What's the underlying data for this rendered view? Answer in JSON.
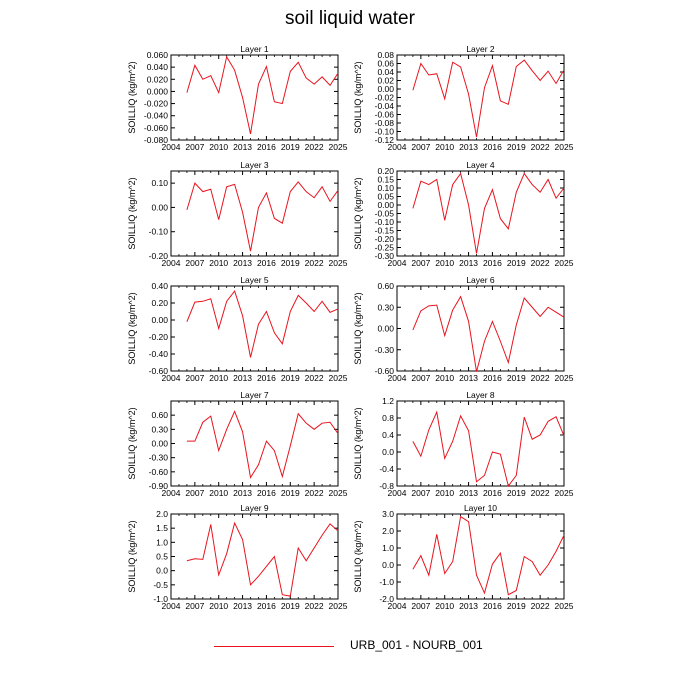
{
  "title": "soil liquid water",
  "legend": {
    "label": "URB_001 - NOURB_001",
    "color": "#e8141e"
  },
  "chart_data": [
    {
      "type": "line",
      "title": "Layer 1",
      "ylabel": "SOILLIQ  (kg/m^2)",
      "x": [
        2006,
        2007,
        2008,
        2009,
        2010,
        2011,
        2012,
        2013,
        2014,
        2015,
        2016,
        2017,
        2018,
        2019,
        2020,
        2021,
        2022,
        2023,
        2024,
        2025
      ],
      "y": [
        -0.002,
        0.043,
        0.02,
        0.026,
        -0.002,
        0.057,
        0.035,
        -0.01,
        -0.07,
        0.012,
        0.041,
        -0.017,
        -0.02,
        0.033,
        0.048,
        0.022,
        0.012,
        0.024,
        0.01,
        0.03
      ],
      "xlim": [
        2004,
        2025
      ],
      "ylim": [
        -0.08,
        0.06
      ],
      "xticks": [
        2004,
        2007,
        2010,
        2013,
        2016,
        2019,
        2022,
        2025
      ],
      "yticks": [
        -0.08,
        -0.06,
        -0.04,
        -0.02,
        0.0,
        0.02,
        0.04,
        0.06
      ],
      "yticklabels": [
        "-0.080",
        "-0.060",
        "-0.040",
        "-0.020",
        "0.000",
        "0.020",
        "0.040",
        "0.060"
      ]
    },
    {
      "type": "line",
      "title": "Layer 2",
      "ylabel": "SOILLIQ  (kg/m^2)",
      "x": [
        2006,
        2007,
        2008,
        2009,
        2010,
        2011,
        2012,
        2013,
        2014,
        2015,
        2016,
        2017,
        2018,
        2019,
        2020,
        2021,
        2022,
        2023,
        2024,
        2025
      ],
      "y": [
        -0.003,
        0.06,
        0.033,
        0.036,
        -0.023,
        0.063,
        0.052,
        -0.012,
        -0.113,
        0.003,
        0.055,
        -0.028,
        -0.036,
        0.053,
        0.068,
        0.043,
        0.02,
        0.042,
        0.013,
        0.045
      ],
      "xlim": [
        2004,
        2025
      ],
      "ylim": [
        -0.12,
        0.08
      ],
      "xticks": [
        2004,
        2007,
        2010,
        2013,
        2016,
        2019,
        2022,
        2025
      ],
      "yticks": [
        -0.12,
        -0.1,
        -0.08,
        -0.06,
        -0.04,
        -0.02,
        0.0,
        0.02,
        0.04,
        0.06,
        0.08
      ],
      "yticklabels": [
        "-0.12",
        "-0.10",
        "-0.08",
        "-0.06",
        "-0.04",
        "-0.02",
        "0.00",
        "0.02",
        "0.04",
        "0.06",
        "0.08"
      ]
    },
    {
      "type": "line",
      "title": "Layer 3",
      "ylabel": "SOILLIQ  (kg/m^2)",
      "x": [
        2006,
        2007,
        2008,
        2009,
        2010,
        2011,
        2012,
        2013,
        2014,
        2015,
        2016,
        2017,
        2018,
        2019,
        2020,
        2021,
        2022,
        2023,
        2024,
        2025
      ],
      "y": [
        -0.01,
        0.1,
        0.065,
        0.075,
        -0.05,
        0.085,
        0.095,
        -0.02,
        -0.18,
        0.0,
        0.06,
        -0.045,
        -0.065,
        0.065,
        0.105,
        0.065,
        0.04,
        0.085,
        0.025,
        0.07
      ],
      "xlim": [
        2004,
        2025
      ],
      "ylim": [
        -0.2,
        0.15
      ],
      "xticks": [
        2004,
        2007,
        2010,
        2013,
        2016,
        2019,
        2022,
        2025
      ],
      "yticks": [
        -0.2,
        -0.1,
        0.0,
        0.1
      ],
      "yticklabels": [
        "-0.20",
        "-0.10",
        "0.00",
        "0.10"
      ]
    },
    {
      "type": "line",
      "title": "Layer 4",
      "ylabel": "SOILLIQ  (kg/m^2)",
      "x": [
        2006,
        2007,
        2008,
        2009,
        2010,
        2011,
        2012,
        2013,
        2014,
        2015,
        2016,
        2017,
        2018,
        2019,
        2020,
        2021,
        2022,
        2023,
        2024,
        2025
      ],
      "y": [
        -0.02,
        0.14,
        0.12,
        0.15,
        -0.09,
        0.12,
        0.185,
        0.0,
        -0.285,
        -0.02,
        0.09,
        -0.08,
        -0.14,
        0.075,
        0.185,
        0.12,
        0.075,
        0.15,
        0.04,
        0.1
      ],
      "xlim": [
        2004,
        2025
      ],
      "ylim": [
        -0.3,
        0.2
      ],
      "xticks": [
        2004,
        2007,
        2010,
        2013,
        2016,
        2019,
        2022,
        2025
      ],
      "yticks": [
        -0.3,
        -0.25,
        -0.2,
        -0.15,
        -0.1,
        -0.05,
        0.0,
        0.05,
        0.1,
        0.15,
        0.2
      ],
      "yticklabels": [
        "-0.30",
        "-0.25",
        "-0.20",
        "-0.15",
        "-0.10",
        "-0.05",
        "0.00",
        "0.05",
        "0.10",
        "0.15",
        "0.20"
      ]
    },
    {
      "type": "line",
      "title": "Layer 5",
      "ylabel": "SOILLIQ  (kg/m^2)",
      "x": [
        2006,
        2007,
        2008,
        2009,
        2010,
        2011,
        2012,
        2013,
        2014,
        2015,
        2016,
        2017,
        2018,
        2019,
        2020,
        2021,
        2022,
        2023,
        2024,
        2025
      ],
      "y": [
        -0.02,
        0.21,
        0.22,
        0.25,
        -0.1,
        0.22,
        0.34,
        0.05,
        -0.44,
        -0.05,
        0.1,
        -0.15,
        -0.28,
        0.1,
        0.29,
        0.2,
        0.1,
        0.22,
        0.09,
        0.13
      ],
      "xlim": [
        2004,
        2025
      ],
      "ylim": [
        -0.6,
        0.4
      ],
      "xticks": [
        2004,
        2007,
        2010,
        2013,
        2016,
        2019,
        2022,
        2025
      ],
      "yticks": [
        -0.6,
        -0.4,
        -0.2,
        0.0,
        0.2,
        0.4
      ],
      "yticklabels": [
        "-0.60",
        "-0.40",
        "-0.20",
        "0.00",
        "0.20",
        "0.40"
      ]
    },
    {
      "type": "line",
      "title": "Layer 6",
      "ylabel": "SOILLIQ  (kg/m^2)",
      "x": [
        2006,
        2007,
        2008,
        2009,
        2010,
        2011,
        2012,
        2013,
        2014,
        2015,
        2016,
        2017,
        2018,
        2019,
        2020,
        2021,
        2022,
        2023,
        2024,
        2025
      ],
      "y": [
        -0.02,
        0.25,
        0.32,
        0.33,
        -0.1,
        0.26,
        0.45,
        0.1,
        -0.61,
        -0.18,
        0.1,
        -0.18,
        -0.48,
        0.05,
        0.43,
        0.3,
        0.17,
        0.3,
        0.23,
        0.16
      ],
      "xlim": [
        2004,
        2025
      ],
      "ylim": [
        -0.6,
        0.6
      ],
      "xticks": [
        2004,
        2007,
        2010,
        2013,
        2016,
        2019,
        2022,
        2025
      ],
      "yticks": [
        -0.6,
        -0.3,
        0.0,
        0.3,
        0.6
      ],
      "yticklabels": [
        "-0.60",
        "-0.30",
        "0.00",
        "0.30",
        "0.60"
      ]
    },
    {
      "type": "line",
      "title": "Layer 7",
      "ylabel": "SOILLIQ  (kg/m^2)",
      "x": [
        2006,
        2007,
        2008,
        2009,
        2010,
        2011,
        2012,
        2013,
        2014,
        2015,
        2016,
        2017,
        2018,
        2019,
        2020,
        2021,
        2022,
        2023,
        2024,
        2025
      ],
      "y": [
        0.05,
        0.05,
        0.45,
        0.58,
        -0.15,
        0.3,
        0.68,
        0.25,
        -0.72,
        -0.45,
        0.05,
        -0.15,
        -0.7,
        -0.05,
        0.63,
        0.43,
        0.3,
        0.43,
        0.45,
        0.21
      ],
      "xlim": [
        2004,
        2025
      ],
      "ylim": [
        -0.9,
        0.9
      ],
      "xticks": [
        2004,
        2007,
        2010,
        2013,
        2016,
        2019,
        2022,
        2025
      ],
      "yticks": [
        -0.9,
        -0.6,
        -0.3,
        0.0,
        0.3,
        0.6
      ],
      "yticklabels": [
        "-0.90",
        "-0.60",
        "-0.30",
        "0.00",
        "0.30",
        "0.60"
      ]
    },
    {
      "type": "line",
      "title": "Layer 8",
      "ylabel": "SOILLIQ  (kg/m^2)",
      "x": [
        2006,
        2007,
        2008,
        2009,
        2010,
        2011,
        2012,
        2013,
        2014,
        2015,
        2016,
        2017,
        2018,
        2019,
        2020,
        2021,
        2022,
        2023,
        2024,
        2025
      ],
      "y": [
        0.25,
        -0.1,
        0.52,
        0.94,
        -0.15,
        0.25,
        0.85,
        0.5,
        -0.7,
        -0.55,
        0.0,
        -0.05,
        -0.8,
        -0.55,
        0.82,
        0.3,
        0.4,
        0.72,
        0.83,
        0.38
      ],
      "xlim": [
        2004,
        2025
      ],
      "ylim": [
        -0.8,
        1.2
      ],
      "xticks": [
        2004,
        2007,
        2010,
        2013,
        2016,
        2019,
        2022,
        2025
      ],
      "yticks": [
        -0.8,
        -0.4,
        0.0,
        0.4,
        0.8,
        1.2
      ],
      "yticklabels": [
        "-0.8",
        "-0.4",
        "0.0",
        "0.4",
        "0.8",
        "1.2"
      ]
    },
    {
      "type": "line",
      "title": "Layer 9",
      "ylabel": "SOILLIQ  (kg/m^2)",
      "x": [
        2006,
        2007,
        2008,
        2009,
        2010,
        2011,
        2012,
        2013,
        2014,
        2015,
        2016,
        2017,
        2018,
        2019,
        2020,
        2021,
        2022,
        2023,
        2024,
        2025
      ],
      "y": [
        0.35,
        0.42,
        0.4,
        1.63,
        -0.15,
        0.6,
        1.68,
        1.1,
        -0.5,
        -0.2,
        0.15,
        0.5,
        -0.85,
        -0.9,
        0.8,
        0.35,
        0.8,
        1.25,
        1.65,
        1.4
      ],
      "xlim": [
        2004,
        2025
      ],
      "ylim": [
        -1.0,
        2.0
      ],
      "xticks": [
        2004,
        2007,
        2010,
        2013,
        2016,
        2019,
        2022,
        2025
      ],
      "yticks": [
        -1.0,
        -0.5,
        0.0,
        0.5,
        1.0,
        1.5,
        2.0
      ],
      "yticklabels": [
        "-1.0",
        "-0.5",
        "0.0",
        "0.5",
        "1.0",
        "1.5",
        "2.0"
      ]
    },
    {
      "type": "line",
      "title": "Layer 10",
      "ylabel": "SOILLIQ  (kg/m^2)",
      "x": [
        2006,
        2007,
        2008,
        2009,
        2010,
        2011,
        2012,
        2013,
        2014,
        2015,
        2016,
        2017,
        2018,
        2019,
        2020,
        2021,
        2022,
        2023,
        2024,
        2025
      ],
      "y": [
        -0.25,
        0.55,
        -0.6,
        1.8,
        -0.5,
        0.2,
        2.85,
        2.55,
        -0.6,
        -1.65,
        0.05,
        0.7,
        -1.75,
        -1.5,
        0.5,
        0.2,
        -0.6,
        0.0,
        0.8,
        1.75
      ],
      "xlim": [
        2004,
        2025
      ],
      "ylim": [
        -2.0,
        3.0
      ],
      "xticks": [
        2004,
        2007,
        2010,
        2013,
        2016,
        2019,
        2022,
        2025
      ],
      "yticks": [
        -2.0,
        -1.0,
        0.0,
        1.0,
        2.0,
        3.0
      ],
      "yticklabels": [
        "-2.0",
        "-1.0",
        "0.0",
        "1.0",
        "2.0",
        "3.0"
      ]
    }
  ]
}
